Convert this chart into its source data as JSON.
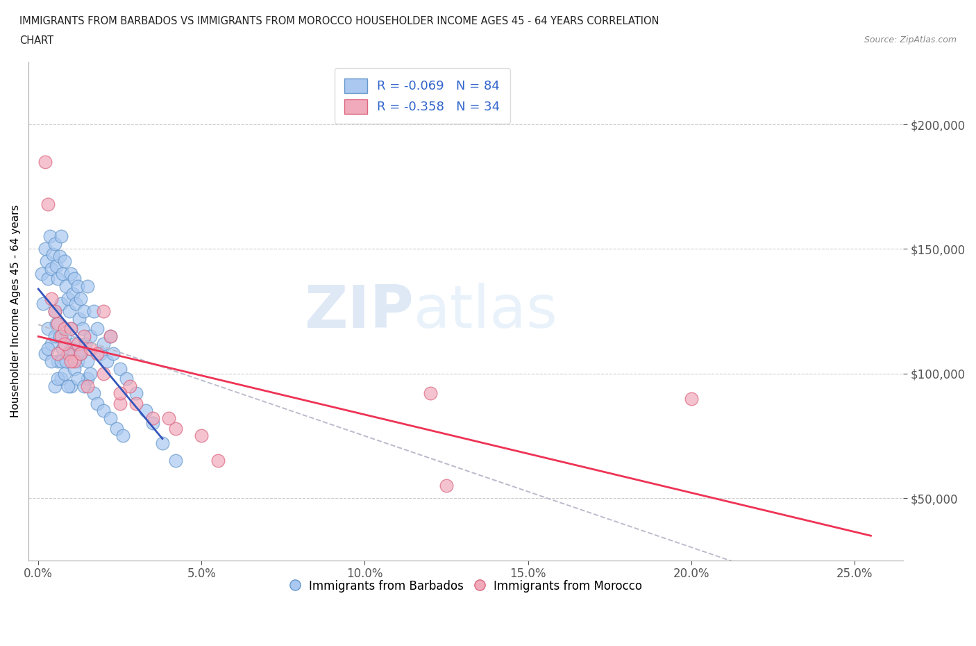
{
  "title_line1": "IMMIGRANTS FROM BARBADOS VS IMMIGRANTS FROM MOROCCO HOUSEHOLDER INCOME AGES 45 - 64 YEARS CORRELATION",
  "title_line2": "CHART",
  "source_text": "Source: ZipAtlas.com",
  "ylabel": "Householder Income Ages 45 - 64 years",
  "xlabel_ticks": [
    "0.0%",
    "5.0%",
    "10.0%",
    "15.0%",
    "20.0%",
    "25.0%"
  ],
  "xlabel_tick_vals": [
    0.0,
    5.0,
    10.0,
    15.0,
    20.0,
    25.0
  ],
  "ytick_labels": [
    "$50,000",
    "$100,000",
    "$150,000",
    "$200,000"
  ],
  "ytick_vals": [
    50000,
    100000,
    150000,
    200000
  ],
  "xlim": [
    -0.3,
    26.5
  ],
  "ylim": [
    25000,
    225000
  ],
  "R_barbados": -0.069,
  "N_barbados": 84,
  "R_morocco": -0.358,
  "N_morocco": 34,
  "barbados_color": "#aac8f0",
  "morocco_color": "#f0aabb",
  "barbados_edge": "#6699cc",
  "morocco_edge": "#dd6680",
  "trendline_barbados_color": "#3355bb",
  "trendline_morocco_color": "#ee3355",
  "trendline_combined_color": "#bbbbcc",
  "watermark_zip": "ZIP",
  "watermark_atlas": "atlas",
  "legend_r1": "R = -0.069   N = 84",
  "legend_r2": "R = -0.358   N = 34",
  "barbados_x": [
    0.1,
    0.15,
    0.2,
    0.2,
    0.25,
    0.3,
    0.3,
    0.35,
    0.4,
    0.4,
    0.45,
    0.5,
    0.5,
    0.5,
    0.55,
    0.6,
    0.6,
    0.65,
    0.7,
    0.7,
    0.7,
    0.75,
    0.8,
    0.8,
    0.85,
    0.9,
    0.9,
    0.95,
    1.0,
    1.0,
    1.0,
    1.05,
    1.1,
    1.1,
    1.15,
    1.2,
    1.2,
    1.25,
    1.3,
    1.3,
    1.35,
    1.4,
    1.45,
    1.5,
    1.5,
    1.6,
    1.7,
    1.8,
    1.9,
    2.0,
    2.1,
    2.2,
    2.3,
    2.5,
    2.7,
    3.0,
    3.3,
    3.5,
    3.8,
    4.2,
    0.3,
    0.4,
    0.5,
    0.6,
    0.7,
    0.8,
    0.9,
    1.0,
    1.1,
    1.2,
    1.3,
    1.4,
    1.5,
    1.6,
    1.7,
    1.8,
    2.0,
    2.2,
    2.4,
    2.6,
    0.55,
    0.65,
    0.75,
    0.85
  ],
  "barbados_y": [
    140000,
    128000,
    150000,
    108000,
    145000,
    138000,
    118000,
    155000,
    142000,
    112000,
    148000,
    152000,
    125000,
    95000,
    143000,
    138000,
    105000,
    147000,
    155000,
    128000,
    98000,
    140000,
    145000,
    115000,
    135000,
    130000,
    108000,
    125000,
    140000,
    118000,
    95000,
    132000,
    138000,
    112000,
    128000,
    135000,
    105000,
    122000,
    130000,
    108000,
    118000,
    125000,
    112000,
    135000,
    98000,
    115000,
    125000,
    118000,
    108000,
    112000,
    105000,
    115000,
    108000,
    102000,
    98000,
    92000,
    85000,
    80000,
    72000,
    65000,
    110000,
    105000,
    115000,
    98000,
    105000,
    100000,
    95000,
    110000,
    102000,
    98000,
    108000,
    95000,
    105000,
    100000,
    92000,
    88000,
    85000,
    82000,
    78000,
    75000,
    120000,
    115000,
    110000,
    105000
  ],
  "morocco_x": [
    0.2,
    0.3,
    0.5,
    0.6,
    0.7,
    0.8,
    0.9,
    1.0,
    1.1,
    1.2,
    1.3,
    1.4,
    1.6,
    1.8,
    2.0,
    2.2,
    2.5,
    2.8,
    3.5,
    4.2,
    5.5,
    12.0,
    20.0,
    0.4,
    0.6,
    0.8,
    1.0,
    1.5,
    2.0,
    2.5,
    3.0,
    4.0,
    5.0,
    12.5
  ],
  "morocco_y": [
    185000,
    168000,
    125000,
    120000,
    115000,
    118000,
    108000,
    118000,
    105000,
    112000,
    108000,
    115000,
    110000,
    108000,
    125000,
    115000,
    88000,
    95000,
    82000,
    78000,
    65000,
    92000,
    90000,
    130000,
    108000,
    112000,
    105000,
    95000,
    100000,
    92000,
    88000,
    82000,
    75000,
    55000
  ]
}
